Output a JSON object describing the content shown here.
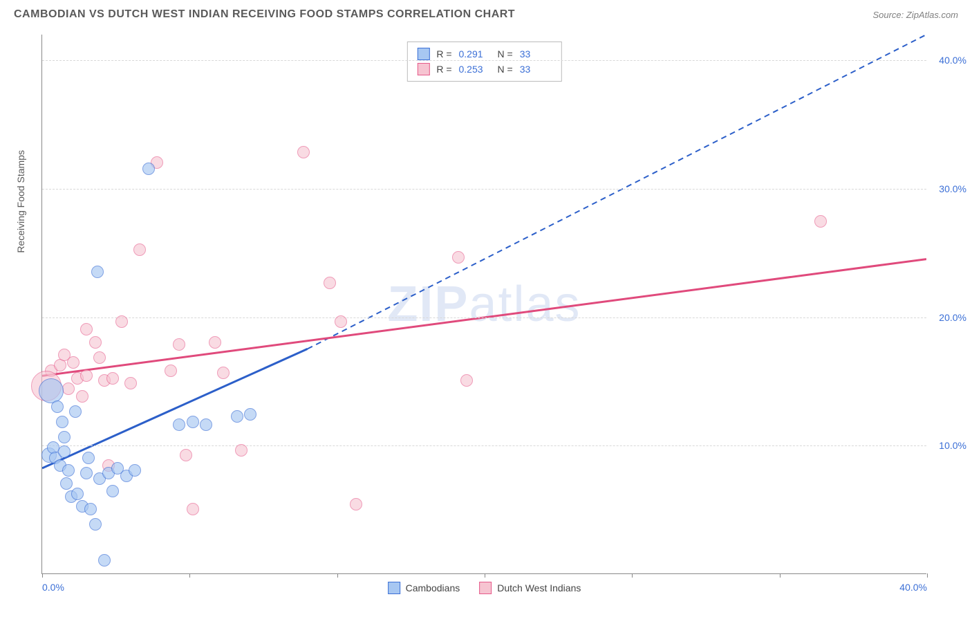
{
  "header": {
    "title": "CAMBODIAN VS DUTCH WEST INDIAN RECEIVING FOOD STAMPS CORRELATION CHART",
    "source": "Source: ZipAtlas.com"
  },
  "watermark": {
    "zip": "ZIP",
    "atlas": "atlas"
  },
  "axes": {
    "y_label": "Receiving Food Stamps",
    "x_min": 0,
    "x_max": 40,
    "y_min": 0,
    "y_max": 42,
    "y_ticks": [
      10,
      20,
      30,
      40
    ],
    "y_tick_labels": [
      "10.0%",
      "20.0%",
      "30.0%",
      "40.0%"
    ],
    "x_ticks": [
      0,
      6.67,
      13.33,
      20,
      26.67,
      33.33,
      40
    ],
    "x_tick_labels_shown": {
      "0": "0.0%",
      "40": "40.0%"
    }
  },
  "legend_top": {
    "rows": [
      {
        "swatch_fill": "#a7c7f2",
        "swatch_border": "#3b6fd6",
        "r": "0.291",
        "n": "33"
      },
      {
        "swatch_fill": "#f6c4d1",
        "swatch_border": "#e65a8a",
        "r": "0.253",
        "n": "33"
      }
    ],
    "r_label": "R  =",
    "n_label": "N  ="
  },
  "legend_bottom": {
    "items": [
      {
        "swatch_fill": "#a7c7f2",
        "swatch_border": "#3b6fd6",
        "label": "Cambodians"
      },
      {
        "swatch_fill": "#f6c4d1",
        "swatch_border": "#e65a8a",
        "label": "Dutch West Indians"
      }
    ]
  },
  "series": {
    "blue": {
      "fill": "#a7c7f2",
      "stroke": "#3b6fd6",
      "opacity": 0.65,
      "marker_r": 9,
      "points": [
        {
          "x": 0.3,
          "y": 9.2,
          "r": 11
        },
        {
          "x": 0.5,
          "y": 9.8
        },
        {
          "x": 0.6,
          "y": 9.0
        },
        {
          "x": 0.8,
          "y": 8.4
        },
        {
          "x": 1.0,
          "y": 9.5
        },
        {
          "x": 1.2,
          "y": 8.0
        },
        {
          "x": 0.4,
          "y": 14.2,
          "r": 18
        },
        {
          "x": 0.7,
          "y": 13.0
        },
        {
          "x": 1.5,
          "y": 12.6
        },
        {
          "x": 1.1,
          "y": 7.0
        },
        {
          "x": 1.3,
          "y": 6.0
        },
        {
          "x": 1.6,
          "y": 6.2
        },
        {
          "x": 1.8,
          "y": 5.2
        },
        {
          "x": 2.0,
          "y": 7.8
        },
        {
          "x": 2.2,
          "y": 5.0
        },
        {
          "x": 2.4,
          "y": 3.8
        },
        {
          "x": 2.1,
          "y": 9.0
        },
        {
          "x": 2.6,
          "y": 7.4
        },
        {
          "x": 3.0,
          "y": 7.8
        },
        {
          "x": 3.2,
          "y": 6.4
        },
        {
          "x": 3.4,
          "y": 8.2
        },
        {
          "x": 3.8,
          "y": 7.6
        },
        {
          "x": 4.2,
          "y": 8.0
        },
        {
          "x": 2.8,
          "y": 1.0
        },
        {
          "x": 4.8,
          "y": 31.5
        },
        {
          "x": 2.5,
          "y": 23.5
        },
        {
          "x": 6.2,
          "y": 11.6
        },
        {
          "x": 6.8,
          "y": 11.8
        },
        {
          "x": 7.4,
          "y": 11.6
        },
        {
          "x": 8.8,
          "y": 12.2
        },
        {
          "x": 9.4,
          "y": 12.4
        },
        {
          "x": 1.0,
          "y": 10.6
        },
        {
          "x": 0.9,
          "y": 11.8
        }
      ],
      "trend": {
        "x1": 0,
        "y1": 8.2,
        "x2_solid": 12,
        "y2_solid": 17.5,
        "x2_dash": 40,
        "y2_dash": 42,
        "color": "#2c5fc9",
        "width": 3
      }
    },
    "pink": {
      "fill": "#f6c4d1",
      "stroke": "#e65a8a",
      "opacity": 0.6,
      "marker_r": 9,
      "points": [
        {
          "x": 0.4,
          "y": 15.8
        },
        {
          "x": 0.8,
          "y": 16.2
        },
        {
          "x": 1.0,
          "y": 17.0
        },
        {
          "x": 1.4,
          "y": 16.4
        },
        {
          "x": 1.6,
          "y": 15.2
        },
        {
          "x": 2.0,
          "y": 15.4
        },
        {
          "x": 2.8,
          "y": 15.0
        },
        {
          "x": 3.2,
          "y": 15.2
        },
        {
          "x": 2.0,
          "y": 19.0
        },
        {
          "x": 2.4,
          "y": 18.0
        },
        {
          "x": 3.6,
          "y": 19.6
        },
        {
          "x": 4.4,
          "y": 25.2
        },
        {
          "x": 5.2,
          "y": 32.0
        },
        {
          "x": 5.8,
          "y": 15.8
        },
        {
          "x": 6.2,
          "y": 17.8
        },
        {
          "x": 6.5,
          "y": 9.2
        },
        {
          "x": 7.8,
          "y": 18.0
        },
        {
          "x": 9.0,
          "y": 9.6
        },
        {
          "x": 11.8,
          "y": 32.8
        },
        {
          "x": 13.0,
          "y": 22.6
        },
        {
          "x": 13.5,
          "y": 19.6
        },
        {
          "x": 14.2,
          "y": 5.4
        },
        {
          "x": 18.8,
          "y": 24.6
        },
        {
          "x": 19.2,
          "y": 15.0
        },
        {
          "x": 35.2,
          "y": 27.4
        },
        {
          "x": 4.0,
          "y": 14.8
        },
        {
          "x": 3.0,
          "y": 8.4
        },
        {
          "x": 6.8,
          "y": 5.0
        },
        {
          "x": 0.2,
          "y": 14.6,
          "r": 22
        },
        {
          "x": 1.2,
          "y": 14.4
        },
        {
          "x": 1.8,
          "y": 13.8
        },
        {
          "x": 2.6,
          "y": 16.8
        },
        {
          "x": 8.2,
          "y": 15.6
        }
      ],
      "trend": {
        "x1": 0,
        "y1": 15.4,
        "x2": 40,
        "y2": 24.5,
        "color": "#e04a7c",
        "width": 3
      }
    }
  }
}
